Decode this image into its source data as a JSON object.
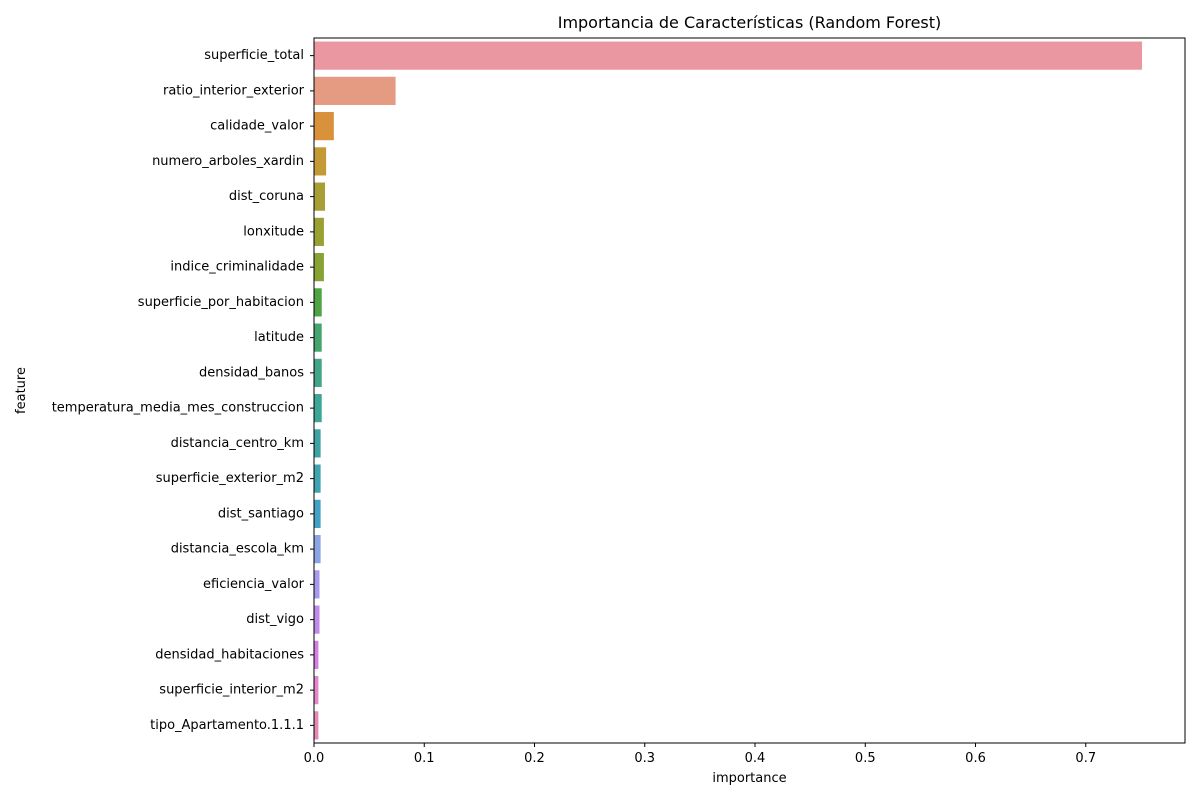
{
  "chart_data": {
    "type": "bar",
    "orientation": "horizontal",
    "title": "Importancia de Características (Random Forest)",
    "xlabel": "importance",
    "ylabel": "feature",
    "xlim": [
      0,
      0.79
    ],
    "xticks": [
      0.0,
      0.1,
      0.2,
      0.3,
      0.4,
      0.5,
      0.6,
      0.7
    ],
    "xtick_labels": [
      "0.0",
      "0.1",
      "0.2",
      "0.3",
      "0.4",
      "0.5",
      "0.6",
      "0.7"
    ],
    "grid": false,
    "categories": [
      "superficie_total",
      "ratio_interior_exterior",
      "calidade_valor",
      "numero_arboles_xardin",
      "dist_coruna",
      "lonxitude",
      "indice_criminalidade",
      "superficie_por_habitacion",
      "latitude",
      "densidad_banos",
      "temperatura_media_mes_construccion",
      "distancia_centro_km",
      "superficie_exterior_m2",
      "dist_santiago",
      "distancia_escola_km",
      "eficiencia_valor",
      "dist_vigo",
      "densidad_habitaciones",
      "superficie_interior_m2",
      "tipo_Apartamento.1.1.1"
    ],
    "values": [
      0.751,
      0.074,
      0.018,
      0.011,
      0.01,
      0.009,
      0.009,
      0.007,
      0.007,
      0.007,
      0.007,
      0.006,
      0.006,
      0.006,
      0.006,
      0.005,
      0.005,
      0.004,
      0.004,
      0.004
    ],
    "colors": [
      "#eb97a2",
      "#e59a82",
      "#d9913c",
      "#c49a36",
      "#a89e36",
      "#99a134",
      "#88a334",
      "#4ea344",
      "#47a46e",
      "#42a587",
      "#3fa596",
      "#3fa3a4",
      "#41a2b2",
      "#44a1c6",
      "#8ba5e3",
      "#a79aec",
      "#c18ae9",
      "#d77ee4",
      "#e586cb",
      "#e588b8"
    ]
  }
}
